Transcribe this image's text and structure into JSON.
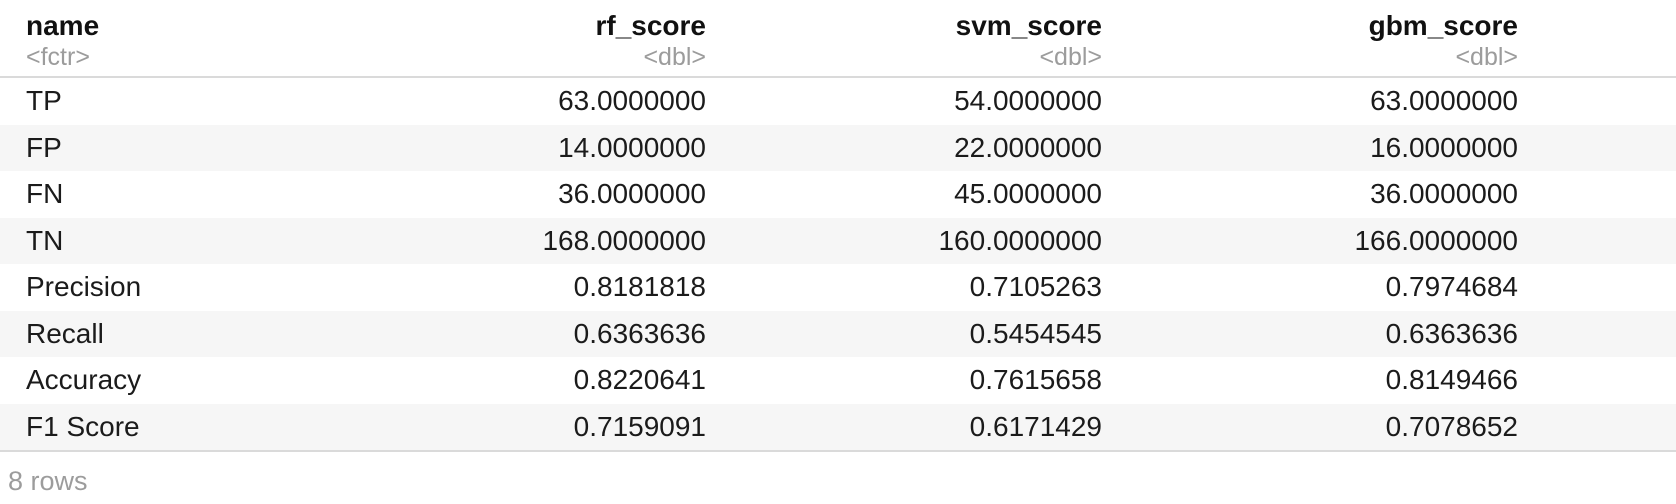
{
  "table": {
    "columns": [
      {
        "label": "name",
        "type": "<fctr>",
        "align": "left"
      },
      {
        "label": "rf_score",
        "type": "<dbl>",
        "align": "right"
      },
      {
        "label": "svm_score",
        "type": "<dbl>",
        "align": "right"
      },
      {
        "label": "gbm_score",
        "type": "<dbl>",
        "align": "right"
      }
    ],
    "rows": [
      [
        "TP",
        "63.0000000",
        "54.0000000",
        "63.0000000"
      ],
      [
        "FP",
        "14.0000000",
        "22.0000000",
        "16.0000000"
      ],
      [
        "FN",
        "36.0000000",
        "45.0000000",
        "36.0000000"
      ],
      [
        "TN",
        "168.0000000",
        "160.0000000",
        "166.0000000"
      ],
      [
        "Precision",
        "0.8181818",
        "0.7105263",
        "0.7974684"
      ],
      [
        "Recall",
        "0.6363636",
        "0.5454545",
        "0.6363636"
      ],
      [
        "Accuracy",
        "0.8220641",
        "0.7615658",
        "0.8149466"
      ],
      [
        "F1 Score",
        "0.7159091",
        "0.6171429",
        "0.7078652"
      ]
    ],
    "footer": "8 rows"
  },
  "colors": {
    "row_stripe": "#f6f6f6",
    "rule": "#dadada",
    "text": "#1b1b1b",
    "muted_text": "#9c9c9c"
  }
}
